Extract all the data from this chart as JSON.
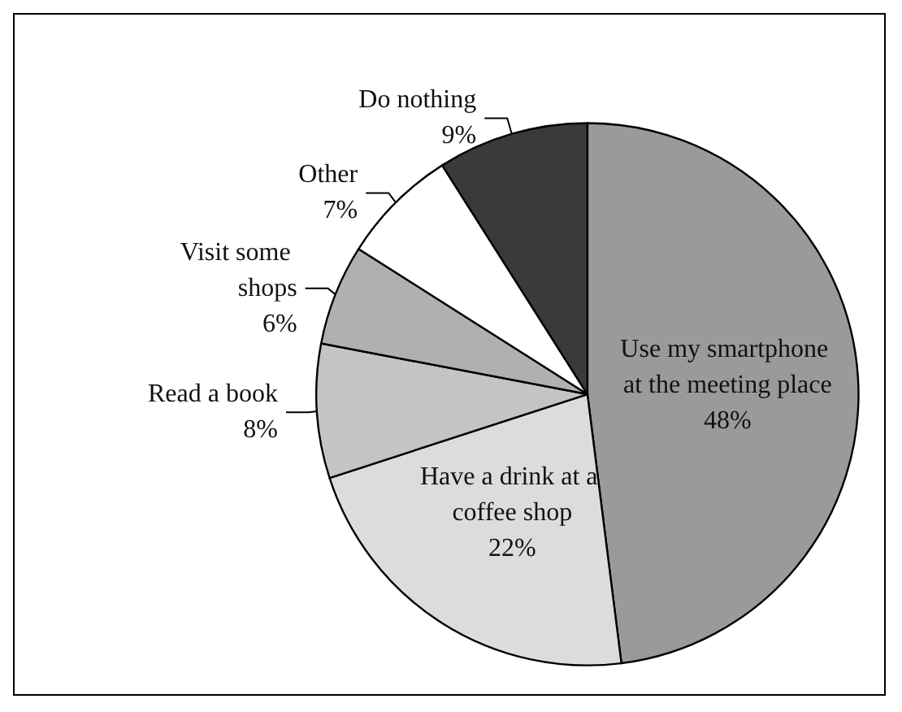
{
  "chart_data": {
    "type": "pie",
    "categories": [
      "Use my smartphone at the meeting place",
      "Have a drink at a coffee shop",
      "Read a book",
      "Visit some shops",
      "Other",
      "Do nothing"
    ],
    "values": [
      48,
      22,
      8,
      6,
      7,
      9
    ],
    "value_labels": [
      "48%",
      "22%",
      "8%",
      "6%",
      "7%",
      "9%"
    ],
    "colors": [
      "#9a9a9a",
      "#dcdcdc",
      "#c4c4c4",
      "#b0b0b0",
      "#ffffff",
      "#3a3a3a"
    ],
    "legend": false
  }
}
